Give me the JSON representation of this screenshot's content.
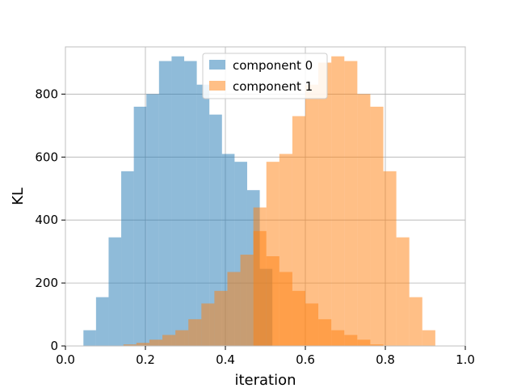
{
  "chart_data": {
    "type": "histogram",
    "xlabel": "iteration",
    "ylabel": "KL",
    "xlim": [
      0.0,
      1.0
    ],
    "ylim": [
      0,
      950
    ],
    "xticks": [
      0.0,
      0.2,
      0.4,
      0.6,
      0.8,
      1.0
    ],
    "xtick_labels": [
      "0.0",
      "0.2",
      "0.4",
      "0.6",
      "0.8",
      "1.0"
    ],
    "yticks": [
      0,
      200,
      400,
      600,
      800
    ],
    "ytick_labels": [
      "0",
      "200",
      "400",
      "600",
      "800"
    ],
    "grid": true,
    "legend_position": "upper center",
    "series": [
      {
        "name": "component 0",
        "color": "#1f77b4",
        "opacity": 0.5,
        "bin_edges": [
          0.045,
          0.0765,
          0.108,
          0.1395,
          0.171,
          0.2025,
          0.234,
          0.2655,
          0.297,
          0.3285,
          0.36,
          0.3915,
          0.423,
          0.4545,
          0.486,
          0.5175
        ],
        "counts": [
          50,
          155,
          345,
          555,
          760,
          800,
          905,
          920,
          905,
          830,
          735,
          610,
          585,
          495,
          245
        ]
      },
      {
        "name": "component 1",
        "color": "#ff7f0e",
        "opacity": 0.5,
        "bin_edges": [
          0.145,
          0.1775,
          0.21,
          0.2425,
          0.275,
          0.3075,
          0.34,
          0.3725,
          0.405,
          0.4375,
          0.47,
          0.5025,
          0.535,
          0.5675,
          0.6,
          0.6325,
          0.665,
          0.6975,
          0.73,
          0.7625,
          0.795,
          0.8275,
          0.86,
          0.8925,
          0.925,
          0.9575
        ],
        "counts": [
          5,
          10,
          20,
          35,
          50,
          85,
          135,
          175,
          235,
          290,
          365,
          285,
          235,
          175,
          135,
          85,
          50,
          35,
          20,
          5,
          0,
          0,
          0,
          0,
          0
        ],
        "overlay_counts": [
          0,
          0,
          0,
          0,
          0,
          0,
          0,
          0,
          0,
          0,
          440,
          585,
          610,
          730,
          830,
          900,
          920,
          905,
          800,
          760,
          555,
          345,
          155,
          50,
          0
        ]
      }
    ]
  }
}
